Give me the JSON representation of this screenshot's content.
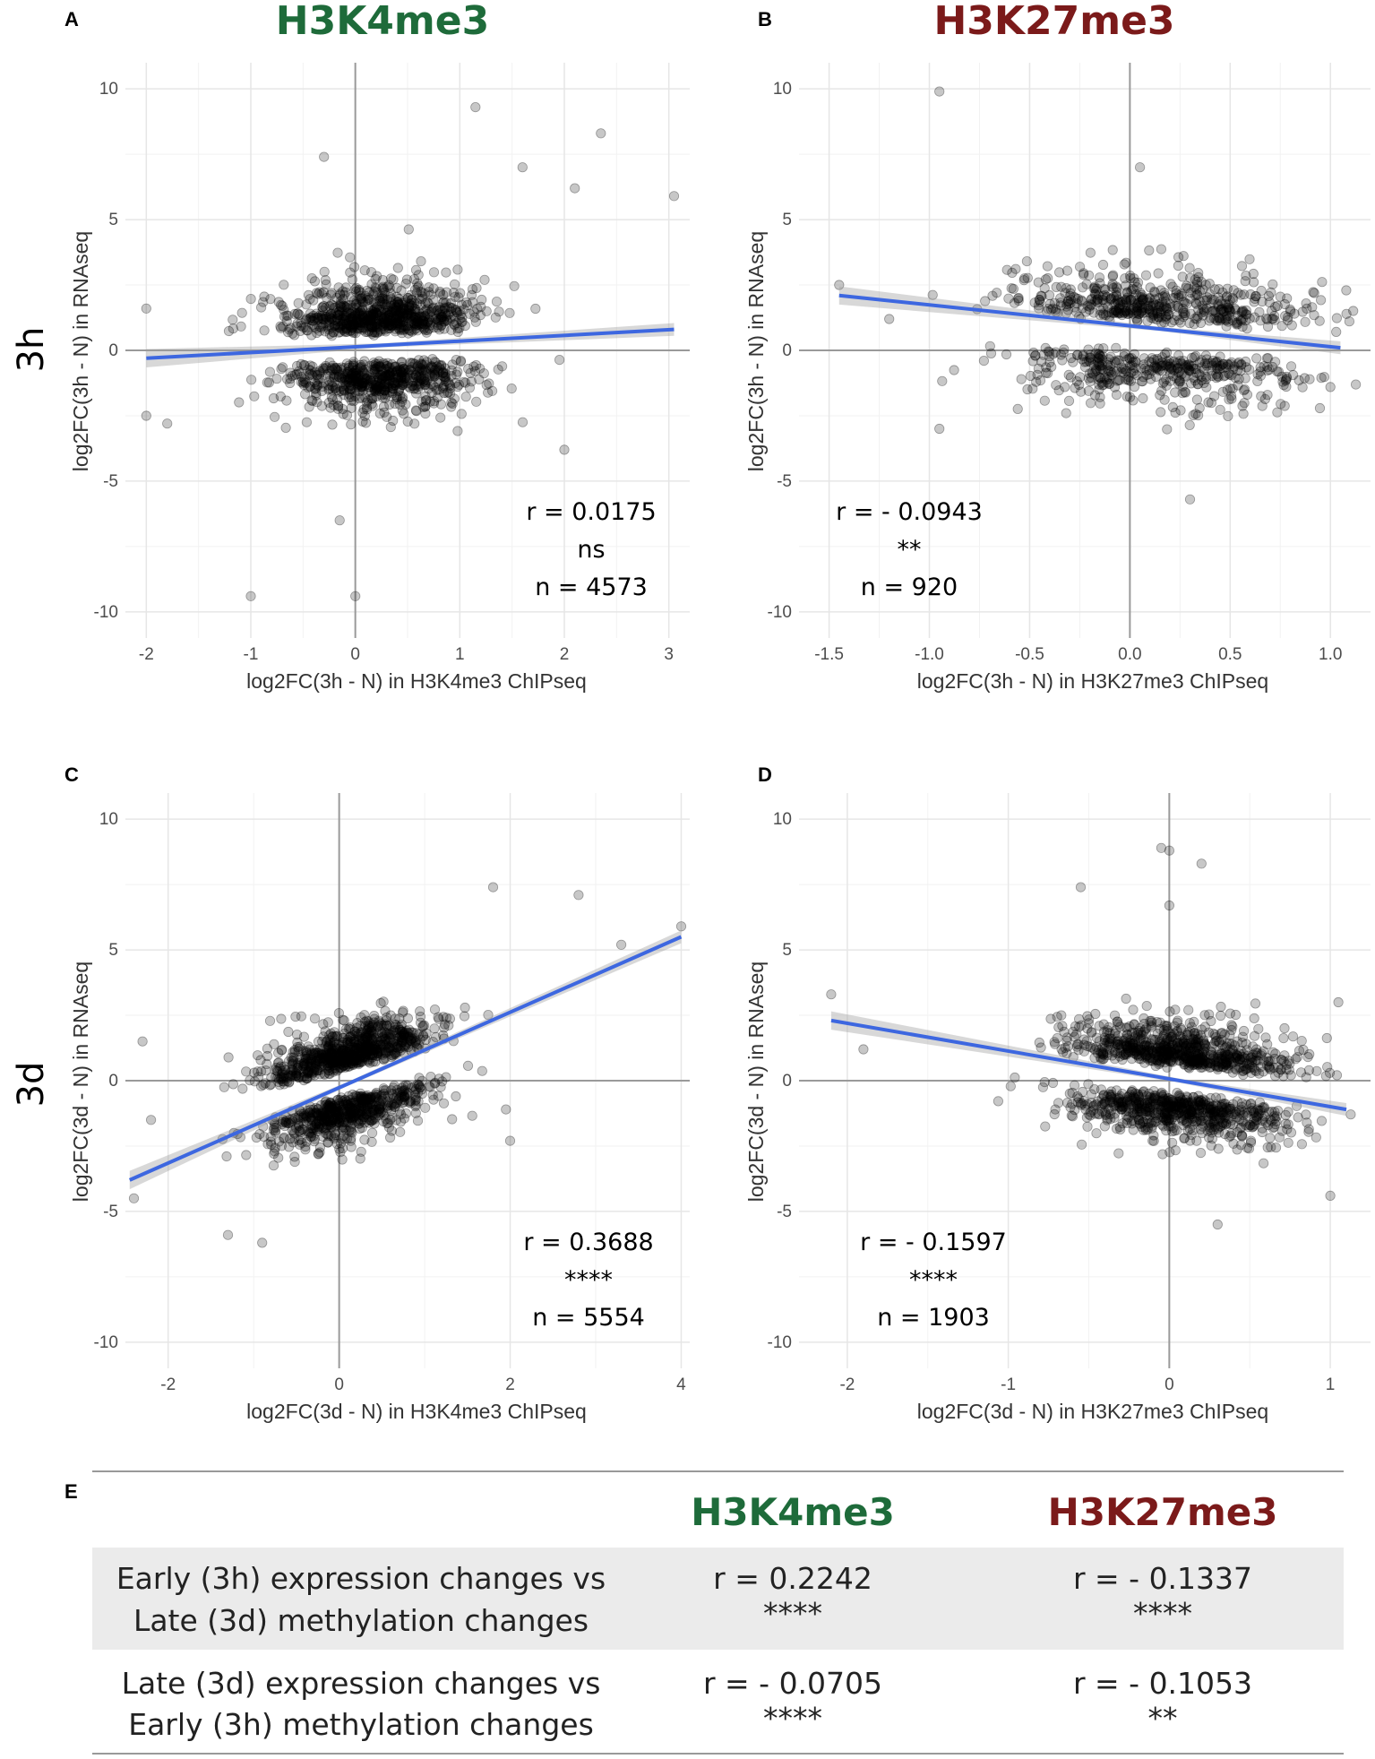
{
  "colors": {
    "h3k4me3": "#1e6b3a",
    "h3k27me3": "#7b1a1a",
    "fit_line": "#3d67e0",
    "points": "#000000",
    "table_shade": "#ebebeb"
  },
  "headers": {
    "col1": "H3K4me3",
    "col2": "H3K27me3"
  },
  "row_labels": {
    "early": "3h",
    "late": "3d"
  },
  "chart_data": [
    {
      "panel": "A",
      "type": "scatter",
      "title": "H3K4me3",
      "xlabel": "log2FC(3h - N) in H3K4me3 ChIPseq",
      "ylabel": "log2FC(3h - N) in RNAseq",
      "xlim": [
        -2.2,
        3.2
      ],
      "ylim": [
        -11,
        11
      ],
      "xticks": [
        -2,
        -1,
        0,
        1,
        2,
        3
      ],
      "xtick_labels": [
        "-2",
        "-1",
        "0",
        "1",
        "2",
        "3"
      ],
      "yticks": [
        -10,
        -5,
        0,
        5,
        10
      ],
      "ytick_labels": [
        "-10",
        "-5",
        "0",
        "5",
        "10"
      ],
      "fit": {
        "x": [
          -2.0,
          3.05
        ],
        "y": [
          -0.3,
          0.8
        ]
      },
      "stats": [
        "r = 0.0175",
        "ns",
        "n = 4573"
      ],
      "points": {
        "n": 4573,
        "x_center": 0.25,
        "x_sd": 0.45,
        "y_abs_mean": 1.0,
        "y_sd": 0.9,
        "outliers": [
          [
            0.0,
            -9.4
          ],
          [
            -1.0,
            -9.4
          ],
          [
            -0.15,
            -6.5
          ],
          [
            1.15,
            9.3
          ],
          [
            2.35,
            8.3
          ],
          [
            3.05,
            5.9
          ],
          [
            -0.3,
            7.4
          ],
          [
            -2.0,
            1.6
          ],
          [
            -2.0,
            -2.5
          ],
          [
            -1.8,
            -2.8
          ],
          [
            2.0,
            -3.8
          ],
          [
            1.6,
            7.0
          ],
          [
            2.1,
            6.2
          ]
        ]
      }
    },
    {
      "panel": "B",
      "type": "scatter",
      "title": "H3K27me3",
      "xlabel": "log2FC(3h - N) in H3K27me3 ChIPseq",
      "ylabel": "log2FC(3h - N) in RNAseq",
      "xlim": [
        -1.65,
        1.2
      ],
      "ylim": [
        -11,
        11
      ],
      "xticks": [
        -1.5,
        -1.0,
        -0.5,
        0.0,
        0.5,
        1.0
      ],
      "xtick_labels": [
        "-1.5",
        "-1.0",
        "-0.5",
        "0.0",
        "0.5",
        "1.0"
      ],
      "yticks": [
        -10,
        -5,
        0,
        5,
        10
      ],
      "ytick_labels": [
        "-10",
        "-5",
        "0",
        "5",
        "10"
      ],
      "fit": {
        "x": [
          -1.45,
          1.05
        ],
        "y": [
          2.1,
          0.1
        ]
      },
      "stats": [
        "r = - 0.0943",
        "**",
        "n = 920"
      ],
      "points": {
        "n": 920,
        "x_center": 0.15,
        "x_sd": 0.35,
        "y_abs_mean": 1.1,
        "y_sd": 0.9,
        "outliers": [
          [
            -0.95,
            9.9
          ],
          [
            -1.45,
            2.5
          ],
          [
            -0.95,
            -3.0
          ],
          [
            -1.2,
            1.2
          ],
          [
            0.05,
            7.0
          ],
          [
            1.0,
            -1.4
          ],
          [
            0.3,
            -5.7
          ]
        ]
      }
    },
    {
      "panel": "C",
      "type": "scatter",
      "xlabel": "log2FC(3d - N) in H3K4me3 ChIPseq",
      "ylabel": "log2FC(3d - N) in RNAseq",
      "xlim": [
        -2.5,
        4.1
      ],
      "ylim": [
        -11,
        11
      ],
      "xticks": [
        -2,
        0,
        2,
        4
      ],
      "xtick_labels": [
        "-2",
        "0",
        "2",
        "4"
      ],
      "yticks": [
        -10,
        -5,
        0,
        5,
        10
      ],
      "ytick_labels": [
        "-10",
        "-5",
        "0",
        "5",
        "10"
      ],
      "fit": {
        "x": [
          -2.45,
          4.0
        ],
        "y": [
          -3.8,
          5.5
        ]
      },
      "stats": [
        "r = 0.3688",
        "****",
        "n = 5554"
      ],
      "points": {
        "n": 5554,
        "x_center": 0.1,
        "x_sd": 0.5,
        "y_abs_mean": 1.0,
        "y_sd": 0.8,
        "outliers": [
          [
            4.0,
            5.9
          ],
          [
            1.8,
            7.4
          ],
          [
            2.8,
            7.1
          ],
          [
            -2.4,
            -4.5
          ],
          [
            -2.2,
            -1.5
          ],
          [
            -0.9,
            -6.2
          ],
          [
            -1.3,
            -5.9
          ],
          [
            -2.3,
            1.5
          ],
          [
            3.3,
            5.2
          ],
          [
            2.0,
            -2.3
          ],
          [
            1.95,
            -1.1
          ]
        ]
      }
    },
    {
      "panel": "D",
      "type": "scatter",
      "xlabel": "log2FC(3d - N) in H3K27me3 ChIPseq",
      "ylabel": "log2FC(3d - N) in RNAseq",
      "xlim": [
        -2.3,
        1.25
      ],
      "ylim": [
        -11,
        11
      ],
      "xticks": [
        -2,
        -1,
        0,
        1
      ],
      "xtick_labels": [
        "-2",
        "-1",
        "0",
        "1"
      ],
      "yticks": [
        -10,
        -5,
        0,
        5,
        10
      ],
      "ytick_labels": [
        "-10",
        "-5",
        "0",
        "5",
        "10"
      ],
      "fit": {
        "x": [
          -2.1,
          1.1
        ],
        "y": [
          2.3,
          -1.1
        ]
      },
      "stats": [
        "r = - 0.1597",
        "****",
        "n = 1903"
      ],
      "points": {
        "n": 1903,
        "x_center": 0.05,
        "x_sd": 0.35,
        "y_abs_mean": 1.0,
        "y_sd": 0.8,
        "outliers": [
          [
            -0.05,
            8.9
          ],
          [
            0.0,
            8.8
          ],
          [
            0.2,
            8.3
          ],
          [
            -0.55,
            7.4
          ],
          [
            -2.1,
            3.3
          ],
          [
            -1.9,
            1.2
          ],
          [
            0.3,
            -5.5
          ],
          [
            0.0,
            6.7
          ],
          [
            1.0,
            -4.4
          ],
          [
            1.05,
            3.0
          ]
        ]
      }
    }
  ],
  "table": {
    "panel": "E",
    "rows": [
      {
        "label_line1": "Early (3h) expression changes vs",
        "label_line2": "Late (3d) methylation changes",
        "h3k4_r": "r = 0.2242",
        "h3k4_sig": "****",
        "h3k27_r": "r = - 0.1337",
        "h3k27_sig": "****"
      },
      {
        "label_line1": "Late (3d) expression changes vs",
        "label_line2": "Early (3h) methylation changes",
        "h3k4_r": "r = - 0.0705",
        "h3k4_sig": "****",
        "h3k27_r": "r = - 0.1053",
        "h3k27_sig": "**"
      }
    ]
  }
}
